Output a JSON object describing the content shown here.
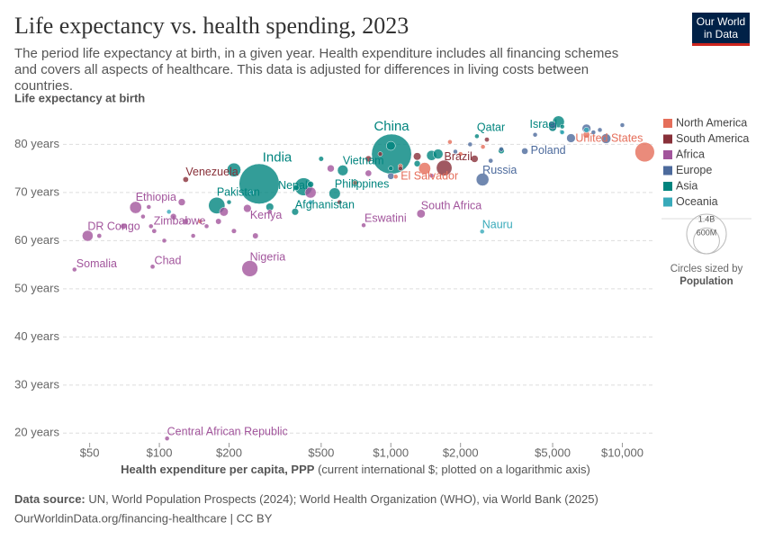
{
  "chart_data": {
    "type": "scatter",
    "title": "Life expectancy vs. health spending, 2023",
    "subtitle": "The period life expectancy at birth, in a given year. Health expenditure includes all financing schemes and covers all aspects of healthcare. This data is adjusted for differences in living costs between countries.",
    "y_label": "Life expectancy at birth",
    "x_label": "Health expenditure per capita, PPP",
    "x_label_note": "(current international $; plotted on a logarithmic axis)",
    "log_x": true,
    "grid": true,
    "xlim": [
      37,
      13500
    ],
    "ylim": [
      18,
      87
    ],
    "xticks": [
      {
        "value": 50,
        "label": "$50"
      },
      {
        "value": 100,
        "label": "$100"
      },
      {
        "value": 200,
        "label": "$200"
      },
      {
        "value": 500,
        "label": "$500"
      },
      {
        "value": 1000,
        "label": "$1,000"
      },
      {
        "value": 2000,
        "label": "$2,000"
      },
      {
        "value": 5000,
        "label": "$5,000"
      },
      {
        "value": 10000,
        "label": "$10,000"
      }
    ],
    "yticks": [
      {
        "value": 20,
        "label": "20 years"
      },
      {
        "value": 30,
        "label": "30 years"
      },
      {
        "value": 40,
        "label": "40 years"
      },
      {
        "value": 50,
        "label": "50 years"
      },
      {
        "value": 60,
        "label": "60 years"
      },
      {
        "value": 70,
        "label": "70 years"
      },
      {
        "value": 80,
        "label": "80 years"
      }
    ],
    "series": [
      {
        "name": "North America",
        "color": "#e56e5a",
        "x": [
          12500,
          1050,
          7000,
          1400,
          700,
          2000,
          1800,
          2500,
          150,
          1100
        ],
        "y": [
          78.4,
          73.3,
          82,
          75,
          72,
          78,
          80.5,
          79.5,
          64,
          75.5
        ],
        "size": [
          340000000,
          6300000,
          39000000,
          129000000,
          18000000,
          11000000,
          5100000,
          4400000,
          12000000,
          10000000
        ],
        "labels": [
          "United States",
          "El Salvador",
          null,
          null,
          null,
          null,
          null,
          null,
          null,
          null
        ]
      },
      {
        "name": "South America",
        "color": "#883039",
        "x": [
          130,
          1700,
          2300,
          2600,
          1300,
          800,
          900,
          600,
          1100
        ],
        "y": [
          72.7,
          75.1,
          77,
          81,
          77.5,
          77,
          78,
          68,
          75
        ],
        "size": [
          28000000,
          216000000,
          46000000,
          20000000,
          52000000,
          34000000,
          18000000,
          12000000,
          6800000
        ],
        "labels": [
          "Venezuela",
          "Brazil",
          null,
          null,
          null,
          null,
          null,
          null,
          null
        ]
      },
      {
        "name": "Africa",
        "color": "#a2559c",
        "x": [
          79,
          49,
          43,
          93.5,
          92,
          240,
          246,
          763,
          1350,
          108,
          55,
          70,
          85,
          95,
          105,
          115,
          130,
          140,
          160,
          180,
          190,
          210,
          260,
          300,
          550,
          450,
          90,
          125,
          800,
          1500
        ],
        "y": [
          66.9,
          61,
          54,
          54.6,
          63,
          66.7,
          54.2,
          63.2,
          65.6,
          18.9,
          61,
          63,
          65,
          62,
          60,
          65,
          64,
          61,
          63,
          64,
          66,
          62,
          61,
          66,
          75,
          70,
          67,
          68,
          74,
          73.5
        ],
        "size": [
          128000000,
          105000000,
          18000000,
          19000000,
          16700000,
          55000000,
          228000000,
          1200000,
          63000000,
          5700000,
          20000000,
          30000000,
          15000000,
          20000000,
          8000000,
          33000000,
          28000000,
          13000000,
          10000000,
          30000000,
          68000000,
          22000000,
          30000000,
          12000000,
          45000000,
          110000000,
          14000000,
          45000000,
          37000000,
          13000000
        ],
        "labels": [
          "Ethiopia",
          "DR Congo",
          "Somalia",
          "Chad",
          "Zimbabwe",
          "Kenya",
          "Nigeria",
          "Eswatini",
          "South Africa",
          "Central African Republic",
          null,
          null,
          null,
          null,
          null,
          null,
          null,
          null,
          null,
          null,
          null,
          null,
          null,
          null,
          null,
          null,
          null,
          null,
          null,
          null
        ]
      },
      {
        "name": "Europe",
        "color": "#4c6a9c",
        "x": [
          3790,
          2490,
          8500,
          7000,
          6000,
          5000,
          5000,
          10000,
          2700,
          1000,
          3000,
          7500,
          8000,
          4200,
          1900,
          2200
        ],
        "y": [
          78.6,
          72.7,
          81.2,
          83.3,
          81.3,
          83.7,
          84,
          84,
          76.6,
          73.4,
          79,
          82.5,
          83,
          82,
          78.5,
          80
        ],
        "size": [
          37000000,
          144000000,
          84000000,
          68000000,
          68000000,
          59000000,
          48000000,
          8800000,
          19000000,
          38000000,
          10000000,
          17500000,
          10000000,
          10000000,
          6600000,
          2800000
        ],
        "labels": [
          "Poland",
          "Russia",
          null,
          null,
          null,
          null,
          null,
          null,
          null,
          null,
          null,
          null,
          null,
          null,
          null,
          null
        ]
      },
      {
        "name": "Asia",
        "color": "#00847e",
        "x": [
          1007,
          270,
          177,
          390,
          620,
          572,
          386,
          2354,
          5470,
          5300,
          420,
          210,
          1000,
          3000,
          5000,
          1600,
          1500,
          1300,
          300,
          700,
          450,
          5500,
          500,
          200,
          1000
        ],
        "y": [
          78,
          71.8,
          67.3,
          71,
          74.6,
          69.8,
          66,
          81.7,
          82.6,
          84.7,
          71.2,
          74.7,
          79.7,
          78.7,
          83.5,
          78,
          77.7,
          76,
          67,
          72,
          71.7,
          83.7,
          77,
          68,
          75
        ],
        "size": [
          1420000000,
          1440000000,
          240000000,
          30000000,
          100000000,
          115000000,
          42000000,
          2700000,
          9800000,
          124000000,
          280000000,
          170000000,
          72000000,
          33000000,
          52000000,
          86000000,
          90000000,
          35000000,
          54000000,
          45000000,
          35000000,
          6000000,
          22000000,
          7600000,
          20000000
        ],
        "labels": [
          "China",
          "India",
          "Pakistan",
          "Nepal",
          "Vietnam",
          "Philippines",
          "Afghanistan",
          "Qatar",
          "Israel",
          null,
          null,
          null,
          null,
          null,
          null,
          null,
          null,
          null,
          null,
          null,
          null,
          null,
          null,
          null,
          null
        ]
      },
      {
        "name": "Oceania",
        "color": "#38aaba",
        "x": [
          2480,
          7000,
          5500,
          110,
          450,
          250
        ],
        "y": [
          61.9,
          83,
          82.5,
          66,
          68,
          70
        ],
        "size": [
          12000,
          27000000,
          5200000,
          10000000,
          900000,
          700000
        ],
        "labels": [
          "Nauru",
          null,
          null,
          null,
          null,
          null
        ]
      }
    ],
    "size_legend": {
      "title": "Circles sized by",
      "variable": "Population",
      "items": [
        {
          "value": 1400000000,
          "label": "1.4B"
        },
        {
          "value": 600000000,
          "label": "600M"
        }
      ]
    },
    "source_label": "Data source:",
    "source_text": "UN, World Population Prospects (2024); World Health Organization (WHO), via World Bank (2025)",
    "url": "OurWorldinData.org/financing-healthcare | CC BY",
    "logo": [
      "Our World",
      "in Data"
    ]
  }
}
